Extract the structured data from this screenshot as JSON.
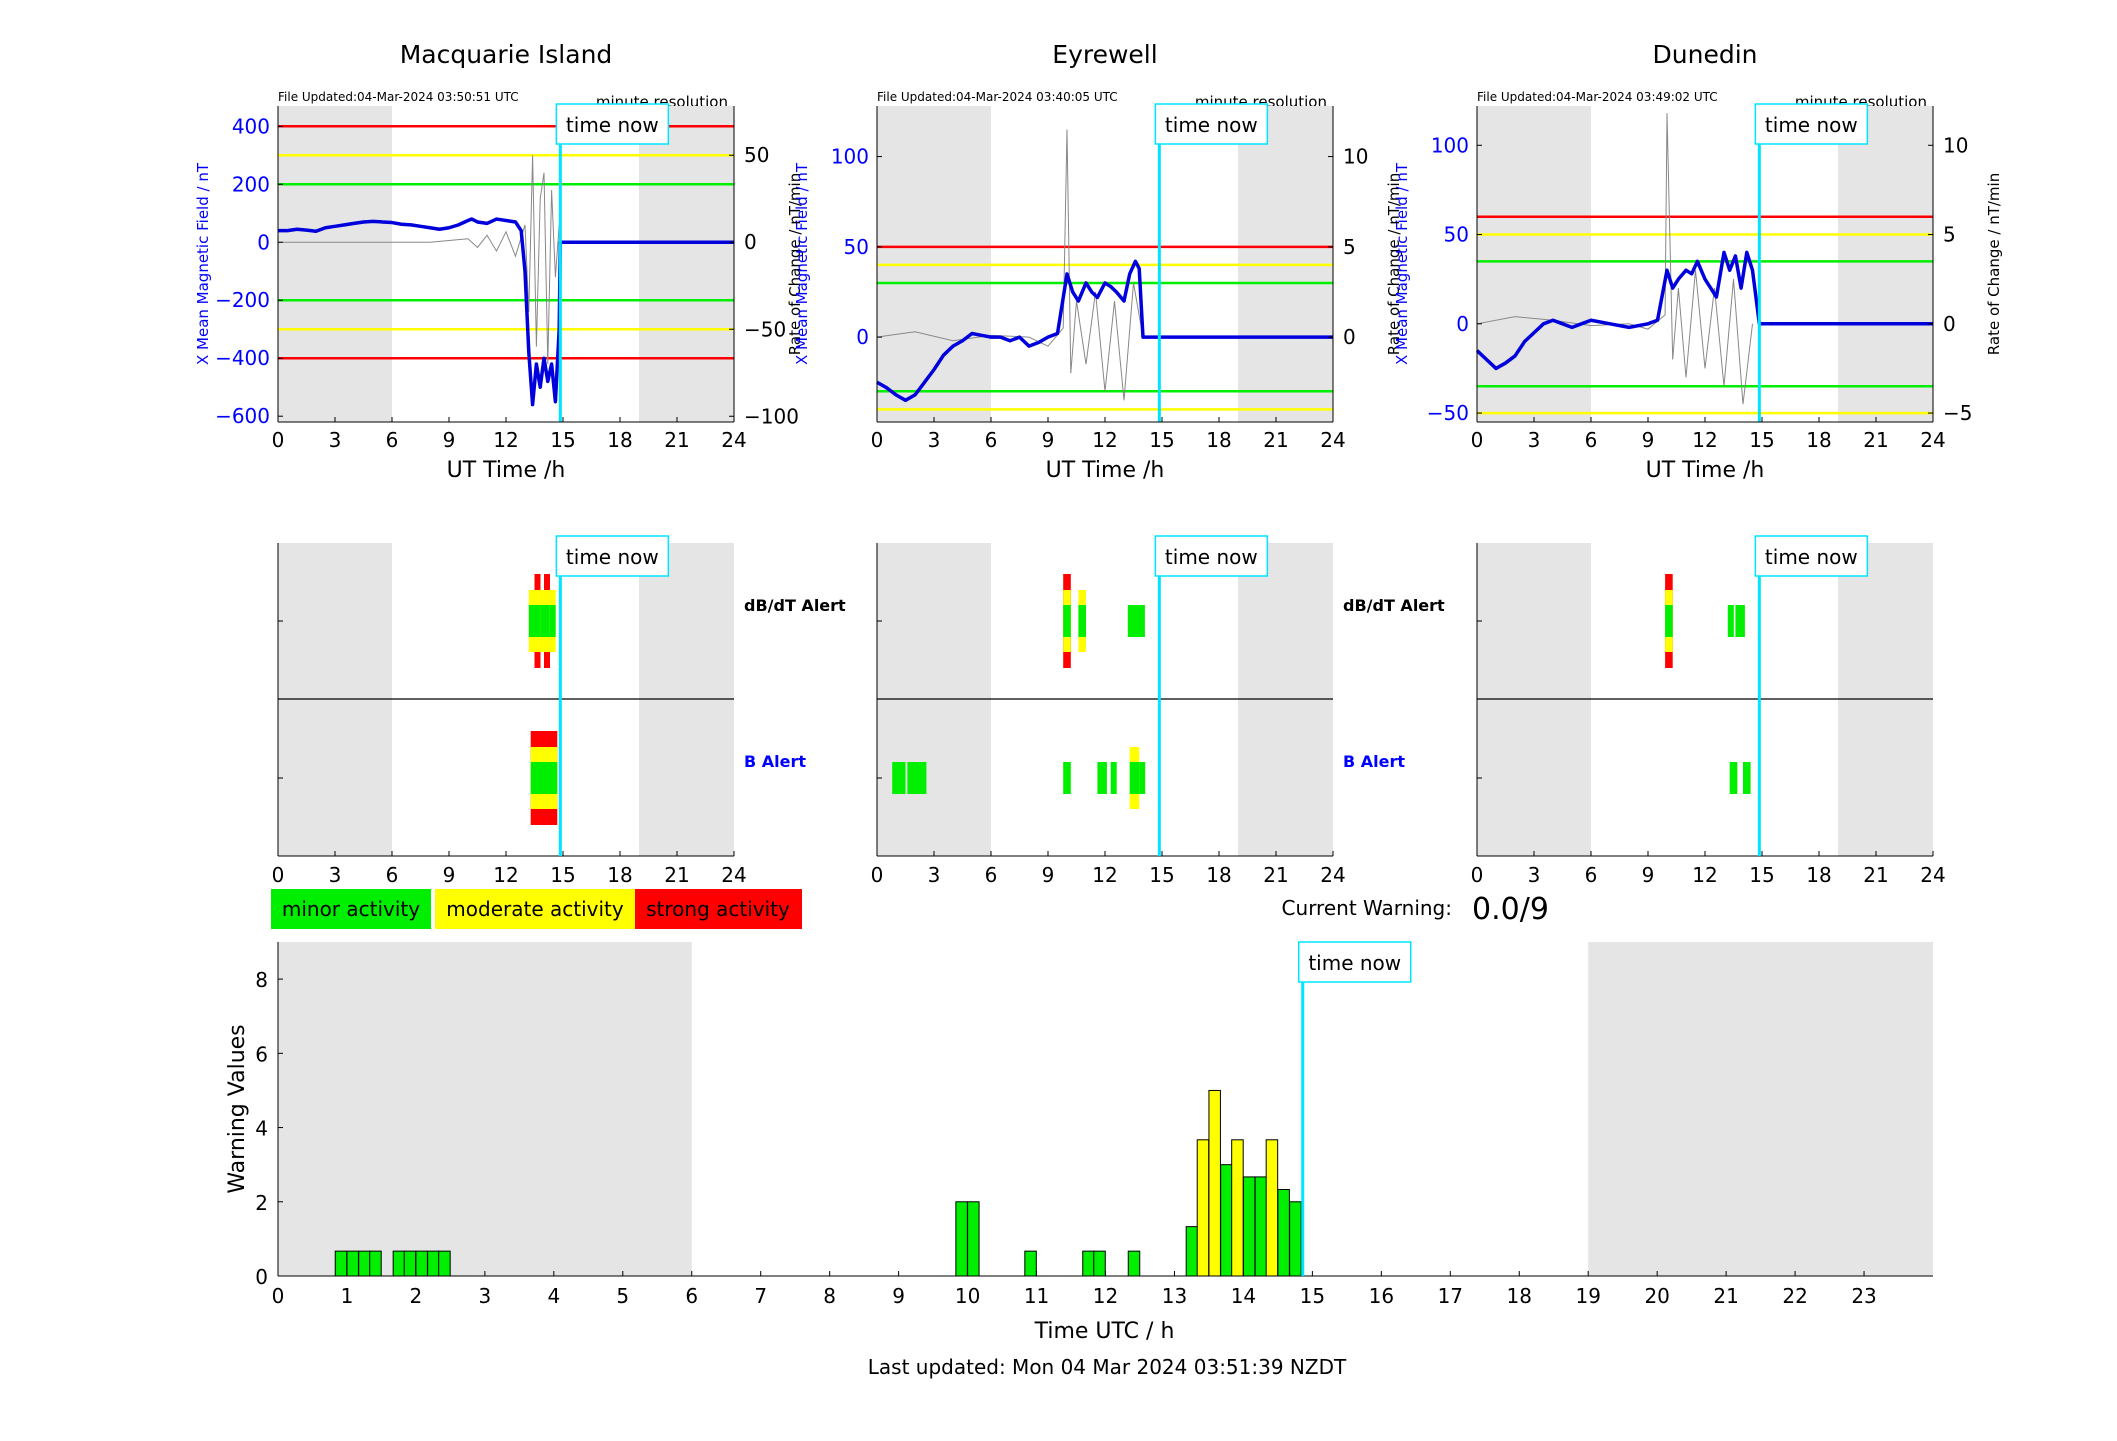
{
  "colors": {
    "background": "#ffffff",
    "night_shade": "#e5e5e5",
    "field_blue": "#0000dd",
    "axis_blue": "#0000ff",
    "time_now_cyan": "#00e5ff",
    "minor_green": "#00ee00",
    "moderate_yellow": "#ffff00",
    "strong_red": "#ff0000",
    "rate_grey": "#888888"
  },
  "common": {
    "file_updated_prefix": "File Updated:",
    "resolution_label": "minute resolution",
    "time_now_label": "time now",
    "x_axis_label": "UT Time /h",
    "x_ticks": [
      0,
      3,
      6,
      9,
      12,
      15,
      18,
      21,
      24
    ],
    "x_range": [
      0,
      24
    ],
    "left_ylabel": "X Mean Magnetic Field / nT",
    "right_ylabel": "Rate of Change / nT/min",
    "time_now_ut": 14.86,
    "night_shading_ut": [
      [
        0,
        6
      ],
      [
        19,
        24
      ]
    ]
  },
  "alert_labels": {
    "dbdt": "dB/dT Alert",
    "b": "B Alert"
  },
  "legend": {
    "minor": "minor activity",
    "moderate": "moderate activity",
    "strong": "strong activity"
  },
  "current_warning": {
    "label": "Current Warning:",
    "value": "0.0/9"
  },
  "footer": {
    "last_updated": "Last updated: Mon 04 Mar 2024 03:51:39 NZDT"
  },
  "chart_data": [
    {
      "type": "line",
      "title": "Macquarie Island",
      "file_updated": "04-Mar-2024 03:50:51 UTC",
      "xlabel": "UT Time /h",
      "ylabel_left": "X Mean Magnetic Field / nT",
      "ylabel_right": "Rate of Change / nT/min",
      "ylim_left": [
        -620,
        470
      ],
      "ylim_right": [
        -103.3,
        78.3
      ],
      "yticks_left": [
        -600,
        -400,
        -200,
        0,
        200,
        400
      ],
      "yticks_right": [
        -100,
        -50,
        0,
        50
      ],
      "thresholds": [
        {
          "level": "strong",
          "values": [
            400,
            -400
          ]
        },
        {
          "level": "moderate",
          "values": [
            300,
            -300
          ]
        },
        {
          "level": "minor",
          "values": [
            200,
            -200
          ]
        }
      ],
      "field_series": {
        "name": "X Mean Magnetic Field",
        "x": [
          0,
          0.5,
          1,
          1.5,
          2,
          2.5,
          3,
          3.5,
          4,
          4.5,
          5,
          5.5,
          6,
          6.5,
          7,
          7.5,
          8,
          8.5,
          9,
          9.5,
          10,
          10.2,
          10.5,
          11,
          11.5,
          12,
          12.5,
          12.8,
          13,
          13.2,
          13.4,
          13.6,
          13.8,
          14,
          14.2,
          14.4,
          14.6,
          14.8,
          14.86,
          15,
          24
        ],
        "y": [
          40,
          40,
          45,
          42,
          38,
          50,
          55,
          60,
          65,
          70,
          72,
          70,
          68,
          62,
          60,
          55,
          50,
          45,
          50,
          60,
          75,
          80,
          70,
          65,
          80,
          75,
          70,
          40,
          -100,
          -380,
          -560,
          -420,
          -500,
          -400,
          -480,
          -420,
          -550,
          -300,
          0,
          0,
          0
        ]
      },
      "rate_series": {
        "name": "Rate of Change",
        "x": [
          0,
          8,
          9,
          10,
          10.5,
          11,
          11.5,
          12,
          12.5,
          13,
          13.2,
          13.4,
          13.6,
          13.8,
          14,
          14.2,
          14.4,
          14.6,
          14.8,
          14.86
        ],
        "y": [
          0,
          0,
          1,
          2,
          -3,
          4,
          -5,
          6,
          -8,
          10,
          -40,
          50,
          -60,
          25,
          40,
          -70,
          30,
          -20,
          10,
          0
        ]
      }
    },
    {
      "type": "line",
      "title": "Eyrewell",
      "file_updated": "04-Mar-2024 03:40:05 UTC",
      "xlabel": "UT Time /h",
      "ylabel_left": "X Mean Magnetic Field / nT",
      "ylabel_right": "Rate of Change / nT/min",
      "ylim_left": [
        -47,
        128
      ],
      "ylim_right": [
        -4.7,
        12.8
      ],
      "yticks_left": [
        0,
        50,
        100
      ],
      "yticks_right": [
        0,
        5,
        10
      ],
      "thresholds": [
        {
          "level": "strong",
          "values": [
            50
          ]
        },
        {
          "level": "moderate",
          "values": [
            40,
            -40
          ]
        },
        {
          "level": "minor",
          "values": [
            30,
            -30
          ]
        }
      ],
      "field_series": {
        "name": "X Mean Magnetic Field",
        "x": [
          0,
          0.5,
          1,
          1.5,
          2,
          2.5,
          3,
          3.5,
          4,
          4.5,
          5,
          5.5,
          6,
          6.5,
          7,
          7.5,
          8,
          8.5,
          9,
          9.5,
          10,
          10.3,
          10.6,
          11,
          11.3,
          11.6,
          12,
          12.3,
          12.6,
          13,
          13.3,
          13.6,
          13.8,
          14,
          14.86,
          24
        ],
        "y": [
          -25,
          -28,
          -32,
          -35,
          -32,
          -25,
          -18,
          -10,
          -5,
          -2,
          2,
          1,
          0,
          0,
          -2,
          0,
          -5,
          -3,
          0,
          2,
          35,
          25,
          20,
          30,
          25,
          22,
          30,
          28,
          25,
          20,
          35,
          42,
          38,
          0,
          0,
          0
        ]
      },
      "rate_series": {
        "name": "Rate of Change",
        "x": [
          0,
          2,
          4,
          6,
          8,
          9,
          9.8,
          10,
          10.2,
          10.5,
          11,
          11.5,
          12,
          12.5,
          13,
          13.5,
          14
        ],
        "y": [
          0,
          0.3,
          -0.2,
          0.1,
          0,
          -0.5,
          0.5,
          11.5,
          -2,
          2,
          -1.5,
          2.5,
          -3,
          2,
          -3.5,
          3,
          0
        ]
      }
    },
    {
      "type": "line",
      "title": "Dunedin",
      "file_updated": "04-Mar-2024 03:49:02 UTC",
      "xlabel": "UT Time /h",
      "ylabel_left": "X Mean Magnetic Field / nT",
      "ylabel_right": "Rate of Change / nT/min",
      "ylim_left": [
        -55,
        122
      ],
      "ylim_right": [
        -5.5,
        12.2
      ],
      "yticks_left": [
        -50,
        0,
        50,
        100
      ],
      "yticks_right": [
        -5,
        0,
        5,
        10
      ],
      "thresholds": [
        {
          "level": "strong",
          "values": [
            60
          ]
        },
        {
          "level": "moderate",
          "values": [
            50,
            -50
          ]
        },
        {
          "level": "minor",
          "values": [
            35,
            -35
          ]
        }
      ],
      "field_series": {
        "name": "X Mean Magnetic Field",
        "x": [
          0,
          0.5,
          1,
          1.5,
          2,
          2.5,
          3,
          3.5,
          4,
          4.5,
          5,
          5.5,
          6,
          7,
          8,
          9,
          9.5,
          10,
          10.3,
          10.6,
          11,
          11.3,
          11.6,
          12,
          12.3,
          12.6,
          13,
          13.3,
          13.6,
          13.9,
          14.2,
          14.5,
          14.86,
          24
        ],
        "y": [
          -15,
          -20,
          -25,
          -22,
          -18,
          -10,
          -5,
          0,
          2,
          0,
          -2,
          0,
          2,
          0,
          -2,
          0,
          2,
          30,
          20,
          25,
          30,
          28,
          35,
          25,
          20,
          15,
          40,
          30,
          38,
          20,
          40,
          30,
          0,
          0
        ]
      },
      "rate_series": {
        "name": "Rate of Change",
        "x": [
          0,
          2,
          4,
          6,
          8,
          9,
          9.9,
          10,
          10.3,
          10.6,
          11,
          11.5,
          12,
          12.5,
          13,
          13.5,
          14,
          14.5
        ],
        "y": [
          0,
          0.4,
          0.2,
          -0.1,
          0,
          -0.3,
          0.5,
          11.8,
          -2,
          2,
          -3,
          3,
          -2.5,
          2,
          -3.5,
          2.5,
          -4.5,
          0
        ]
      }
    },
    {
      "type": "alert_strip",
      "station": "Macquarie Island",
      "xlim": [
        0,
        24
      ],
      "x_ticks": [
        0,
        3,
        6,
        9,
        12,
        15,
        18,
        21,
        24
      ],
      "dbdt_alert": [
        {
          "t0": 13.2,
          "t1": 13.5,
          "level": "moderate"
        },
        {
          "t0": 13.5,
          "t1": 13.8,
          "level": "strong"
        },
        {
          "t0": 13.8,
          "t1": 14.0,
          "level": "moderate"
        },
        {
          "t0": 14.0,
          "t1": 14.3,
          "level": "strong"
        },
        {
          "t0": 14.3,
          "t1": 14.6,
          "level": "moderate"
        }
      ],
      "b_alert": [
        {
          "t0": 13.3,
          "t1": 14.7,
          "level": "strong"
        }
      ]
    },
    {
      "type": "alert_strip",
      "station": "Eyrewell",
      "xlim": [
        0,
        24
      ],
      "x_ticks": [
        0,
        3,
        6,
        9,
        12,
        15,
        18,
        21,
        24
      ],
      "dbdt_alert": [
        {
          "t0": 9.8,
          "t1": 10.2,
          "level": "strong"
        },
        {
          "t0": 10.6,
          "t1": 11.0,
          "level": "moderate"
        },
        {
          "t0": 13.2,
          "t1": 14.1,
          "level": "minor"
        }
      ],
      "b_alert": [
        {
          "t0": 0.8,
          "t1": 1.5,
          "level": "minor"
        },
        {
          "t0": 1.6,
          "t1": 2.6,
          "level": "minor"
        },
        {
          "t0": 9.8,
          "t1": 10.2,
          "level": "minor"
        },
        {
          "t0": 11.6,
          "t1": 12.1,
          "level": "minor"
        },
        {
          "t0": 12.3,
          "t1": 12.6,
          "level": "minor"
        },
        {
          "t0": 13.3,
          "t1": 13.8,
          "level": "moderate"
        },
        {
          "t0": 13.8,
          "t1": 14.0,
          "level": "minor"
        }
      ]
    },
    {
      "type": "alert_strip",
      "station": "Dunedin",
      "xlim": [
        0,
        24
      ],
      "x_ticks": [
        0,
        3,
        6,
        9,
        12,
        15,
        18,
        21,
        24
      ],
      "dbdt_alert": [
        {
          "t0": 9.9,
          "t1": 10.3,
          "level": "strong"
        },
        {
          "t0": 13.2,
          "t1": 13.5,
          "level": "minor"
        },
        {
          "t0": 13.6,
          "t1": 14.1,
          "level": "minor"
        }
      ],
      "b_alert": [
        {
          "t0": 13.3,
          "t1": 13.7,
          "level": "minor"
        },
        {
          "t0": 14.0,
          "t1": 14.4,
          "level": "minor"
        }
      ]
    },
    {
      "type": "bar",
      "xlabel": "Time UTC / h",
      "ylabel": "Warning Values",
      "xlim": [
        0,
        24
      ],
      "ylim": [
        0,
        9
      ],
      "x_ticks": [
        0,
        1,
        2,
        3,
        4,
        5,
        6,
        7,
        8,
        9,
        10,
        11,
        12,
        13,
        14,
        15,
        16,
        17,
        18,
        19,
        20,
        21,
        22,
        23
      ],
      "y_ticks": [
        0,
        2,
        4,
        6,
        8
      ],
      "night_shading": [
        [
          0,
          6
        ],
        [
          19,
          24
        ]
      ],
      "time_now": 14.86,
      "bar_width_h": 0.1667,
      "bars": [
        {
          "t": 0.83,
          "value": 0.67,
          "level": "minor"
        },
        {
          "t": 1.0,
          "value": 0.67,
          "level": "minor"
        },
        {
          "t": 1.17,
          "value": 0.67,
          "level": "minor"
        },
        {
          "t": 1.33,
          "value": 0.67,
          "level": "minor"
        },
        {
          "t": 1.67,
          "value": 0.67,
          "level": "minor"
        },
        {
          "t": 1.83,
          "value": 0.67,
          "level": "minor"
        },
        {
          "t": 2.0,
          "value": 0.67,
          "level": "minor"
        },
        {
          "t": 2.17,
          "value": 0.67,
          "level": "minor"
        },
        {
          "t": 2.33,
          "value": 0.67,
          "level": "minor"
        },
        {
          "t": 9.83,
          "value": 2.0,
          "level": "minor"
        },
        {
          "t": 10.0,
          "value": 2.0,
          "level": "minor"
        },
        {
          "t": 10.83,
          "value": 0.67,
          "level": "minor"
        },
        {
          "t": 11.67,
          "value": 0.67,
          "level": "minor"
        },
        {
          "t": 11.83,
          "value": 0.67,
          "level": "minor"
        },
        {
          "t": 12.33,
          "value": 0.67,
          "level": "minor"
        },
        {
          "t": 13.17,
          "value": 1.33,
          "level": "minor"
        },
        {
          "t": 13.33,
          "value": 3.67,
          "level": "moderate"
        },
        {
          "t": 13.5,
          "value": 5.0,
          "level": "moderate"
        },
        {
          "t": 13.67,
          "value": 3.0,
          "level": "minor"
        },
        {
          "t": 13.83,
          "value": 3.67,
          "level": "moderate"
        },
        {
          "t": 14.0,
          "value": 2.67,
          "level": "minor"
        },
        {
          "t": 14.17,
          "value": 2.67,
          "level": "minor"
        },
        {
          "t": 14.33,
          "value": 3.67,
          "level": "moderate"
        },
        {
          "t": 14.5,
          "value": 2.33,
          "level": "minor"
        },
        {
          "t": 14.67,
          "value": 2.0,
          "level": "minor"
        }
      ]
    }
  ]
}
